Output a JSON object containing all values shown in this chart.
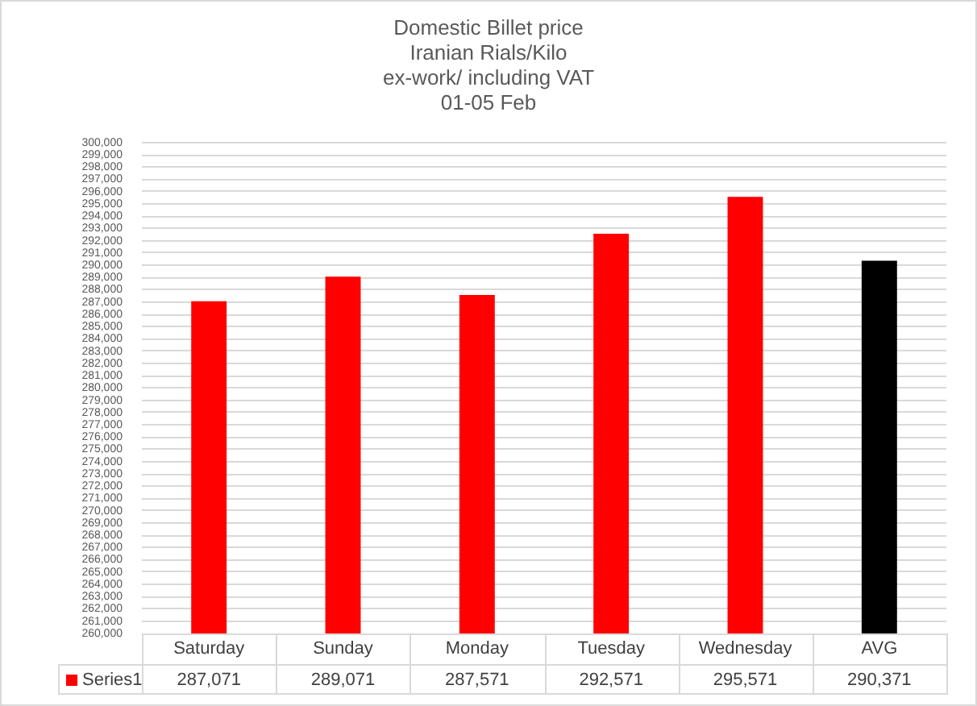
{
  "chart_data": {
    "type": "bar",
    "title": "Domestic Billet price\nIranian Rials/Kilo\nex-work/ including VAT\n01-05 Feb",
    "categories": [
      "Saturday",
      "Sunday",
      "Monday",
      "Tuesday",
      "Wednesday",
      "AVG"
    ],
    "series": [
      {
        "name": "Series1",
        "color": "#ff0000",
        "colors": [
          "#ff0000",
          "#ff0000",
          "#ff0000",
          "#ff0000",
          "#ff0000",
          "#000000"
        ],
        "values": [
          287071,
          289071,
          287571,
          292571,
          295571,
          290371
        ],
        "value_labels": [
          "287,071",
          "289,071",
          "287,571",
          "292,571",
          "295,571",
          "290,371"
        ]
      }
    ],
    "ylim": [
      260000,
      300000
    ],
    "yticks": [
      {
        "value": 260000,
        "label": "260,000"
      },
      {
        "value": 261000,
        "label": "261,000"
      },
      {
        "value": 262000,
        "label": "262,000"
      },
      {
        "value": 263000,
        "label": "263,000"
      },
      {
        "value": 264000,
        "label": "264,000"
      },
      {
        "value": 265000,
        "label": "265,000"
      },
      {
        "value": 266000,
        "label": "266,000"
      },
      {
        "value": 267000,
        "label": "267,000"
      },
      {
        "value": 268000,
        "label": "268,000"
      },
      {
        "value": 269000,
        "label": "269,000"
      },
      {
        "value": 270000,
        "label": "270,000"
      },
      {
        "value": 271000,
        "label": "271,000"
      },
      {
        "value": 272000,
        "label": "272,000"
      },
      {
        "value": 273000,
        "label": "273,000"
      },
      {
        "value": 274000,
        "label": "274,000"
      },
      {
        "value": 275000,
        "label": "275,000"
      },
      {
        "value": 276000,
        "label": "276,000"
      },
      {
        "value": 277000,
        "label": "277,000"
      },
      {
        "value": 278000,
        "label": "278,000"
      },
      {
        "value": 279000,
        "label": "279,000"
      },
      {
        "value": 280000,
        "label": "280,000"
      },
      {
        "value": 281000,
        "label": "281,000"
      },
      {
        "value": 282000,
        "label": "282,000"
      },
      {
        "value": 283000,
        "label": "283,000"
      },
      {
        "value": 284000,
        "label": "284,000"
      },
      {
        "value": 285000,
        "label": "285,000"
      },
      {
        "value": 286000,
        "label": "286,000"
      },
      {
        "value": 287000,
        "label": "287,000"
      },
      {
        "value": 288000,
        "label": "288,000"
      },
      {
        "value": 289000,
        "label": "289,000"
      },
      {
        "value": 290000,
        "label": "290,000"
      },
      {
        "value": 291000,
        "label": "291,000"
      },
      {
        "value": 292000,
        "label": "292,000"
      },
      {
        "value": 293000,
        "label": "293,000"
      },
      {
        "value": 294000,
        "label": "294,000"
      },
      {
        "value": 295000,
        "label": "295,000"
      },
      {
        "value": 296000,
        "label": "296,000"
      },
      {
        "value": 297000,
        "label": "297,000"
      },
      {
        "value": 298000,
        "label": "298,000"
      },
      {
        "value": 299000,
        "label": "299,000"
      },
      {
        "value": 300000,
        "label": "300,000"
      }
    ],
    "grid": "y",
    "legend": "bottom left"
  }
}
